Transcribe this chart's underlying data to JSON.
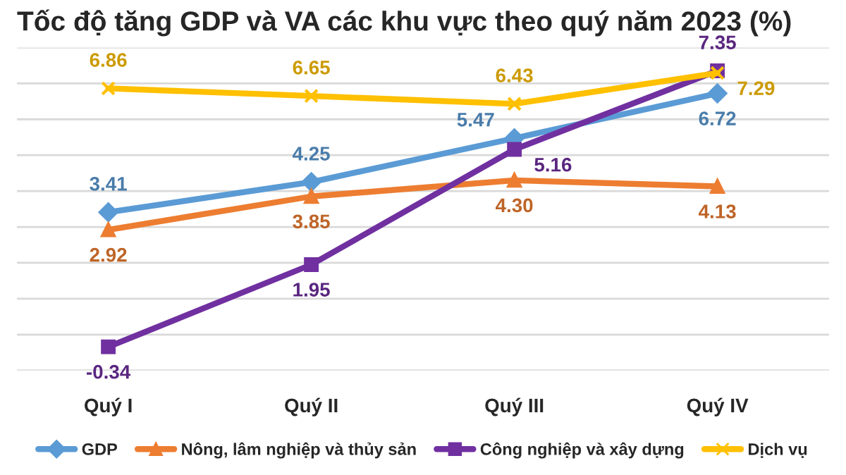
{
  "chart_data": {
    "type": "line",
    "title": "Tốc độ tăng GDP và VA các khu vực theo quý năm 2023 (%)",
    "categories": [
      "Quý I",
      "Quý II",
      "Quý III",
      "Quý IV"
    ],
    "series": [
      {
        "name": "GDP",
        "color": "#5b9bd5",
        "marker": "diamond",
        "values": [
          3.41,
          4.25,
          5.47,
          6.72
        ],
        "value_labels": [
          "3.41",
          "4.25",
          "5.47",
          "6.72"
        ]
      },
      {
        "name": "Nông, lâm nghiệp và thủy sản",
        "color": "#ed7d31",
        "marker": "triangle",
        "values": [
          2.92,
          3.85,
          4.3,
          4.13
        ],
        "value_labels": [
          "2.92",
          "3.85",
          "4.30",
          "4.13"
        ]
      },
      {
        "name": "Công nghiệp và xây dựng",
        "color": "#7030a0",
        "marker": "square",
        "values": [
          -0.34,
          1.95,
          5.16,
          7.35
        ],
        "value_labels": [
          "-0.34",
          "1.95",
          "5.16",
          "7.35"
        ]
      },
      {
        "name": "Dịch vụ",
        "color": "#ffc000",
        "marker": "cross",
        "values": [
          6.86,
          6.65,
          6.43,
          7.29
        ],
        "value_labels": [
          "6.86",
          "6.65",
          "6.43",
          "7.29"
        ]
      }
    ],
    "ylim": [
      -1,
      8
    ],
    "yticks": [
      {
        "value": -1,
        "label": null
      },
      {
        "value": 0,
        "label": null
      },
      {
        "value": 1,
        "label": null
      },
      {
        "value": 2,
        "label": null
      },
      {
        "value": 3,
        "label": null
      },
      {
        "value": 4,
        "label": null
      },
      {
        "value": 5,
        "label": null
      },
      {
        "value": 6,
        "label": null
      },
      {
        "value": 7,
        "label": null
      },
      {
        "value": 8,
        "label": null
      }
    ],
    "grid": "y",
    "legend": "bottom",
    "line_style": "solid"
  }
}
